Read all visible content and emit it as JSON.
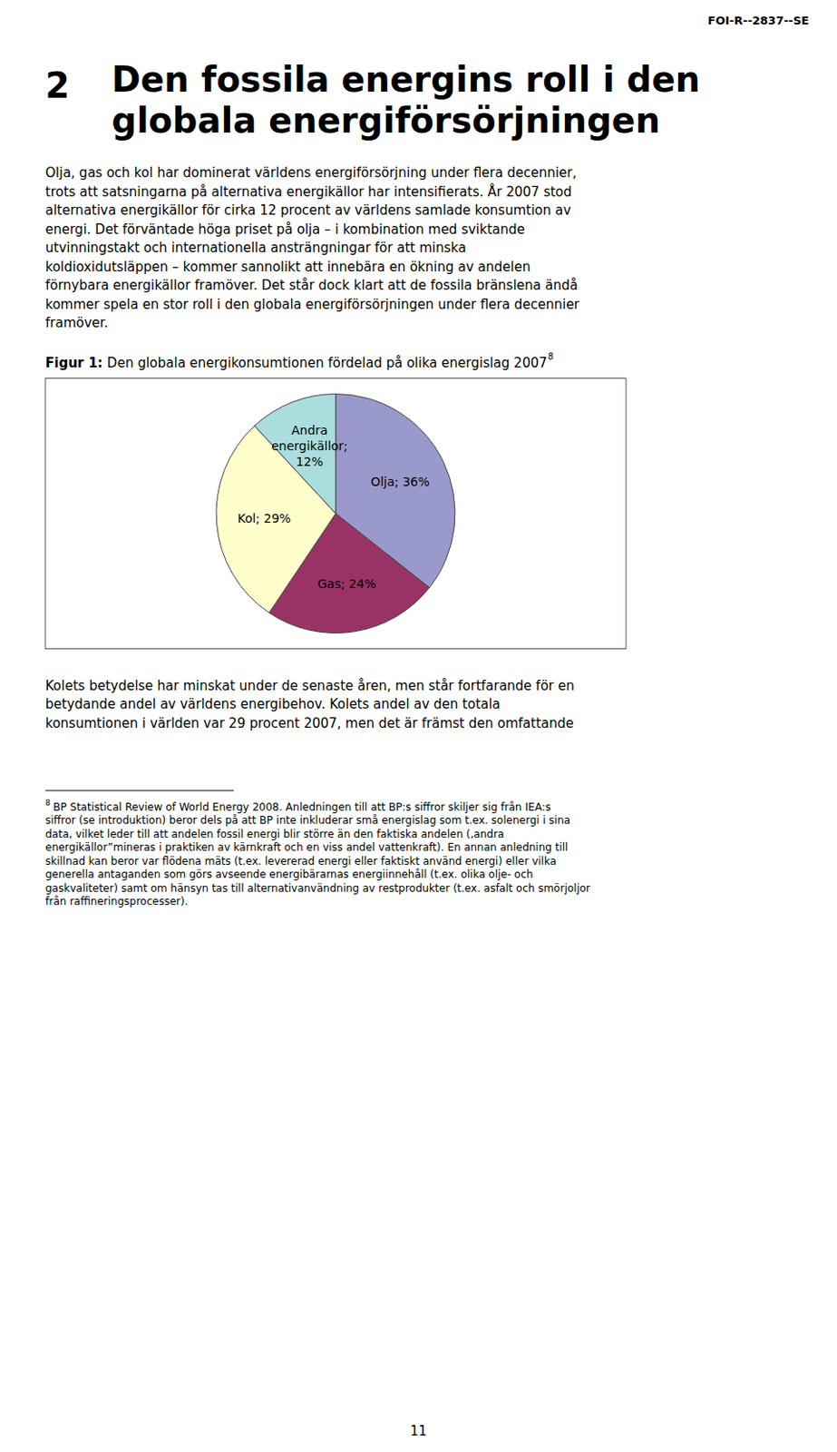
{
  "page": {
    "header": "FOI-R--2837--SE",
    "chapter_number": "2",
    "chapter_title": [
      "Den fossila energins roll i den",
      "globala energiförsörjningen"
    ],
    "body1": [
      "Olja, gas och kol har dominerat världens energiförsörjning under flera decennier,",
      "trots att satsningarna på alternativa energikällor har intensifierats. År 2007 stod",
      "alternativa energikällor för cirka 12 procent av världens samlade konsumtion av",
      "energi. Det förväntade höga priset på olja – i kombination med sviktande",
      "utvinningstakt och internationella ansträngningar för att minska",
      "koldioxidutsläppen – kommer sannolikt att innebära en ökning av andelen",
      "förnybara energikällor framöver. Det står dock klart att de fossila bränslena ändå",
      "kommer spela en stor roll i den globala energiförsörjningen under flera decennier",
      "framöver."
    ],
    "caption_label": "Figur 1:",
    "caption_text": "Den globala energikonsumtionen fördelad på olika energislag 2007",
    "caption_note": "8",
    "body2": [
      "Kolets betydelse har minskat under de senaste åren, men står fortfarande för en",
      "betydande andel av världens energibehov. Kolets andel av den totala",
      "konsumtionen i världen var 29 procent 2007, men det är främst den omfattande"
    ],
    "footnote_mark": "8",
    "footnotes": [
      "BP Statistical Review of World Energy 2008. Anledningen till att BP:s siffror skiljer sig från IEA:s",
      "siffror (se introduktion) beror dels på att BP inte inkluderar små energislag som t.ex. solenergi i sina",
      "data, vilket leder till att andelen fossil energi blir större än den faktiska andelen (‚andra",
      "energikällor”mineras i praktiken av kärnkraft och en viss andel vattenkraft). En annan anledning till",
      "skillnad kan beror var flödena mäts (t.ex. levererad energi eller faktiskt använd energi) eller vilka",
      "generella antaganden som görs avseende energibärarnas energiinnehåll (t.ex. olika olje- och",
      "gaskvaliteter) samt om hänsyn tas till alternativanvändning av restprodukter (t.ex. asfalt och smörjoljor",
      "från raffineringsprocesser)."
    ],
    "page_number": "11"
  },
  "chart_data": {
    "type": "pie",
    "values": [
      36,
      24,
      29,
      12
    ],
    "value_labels": [
      "Olja; 36%",
      "Gas; 24%",
      "Kol; 29%",
      "Andra energikällor; 12%"
    ],
    "colors": [
      "#9999cc",
      "#993366",
      "#ffffcc",
      "#aadddd"
    ],
    "data_labels": true
  }
}
